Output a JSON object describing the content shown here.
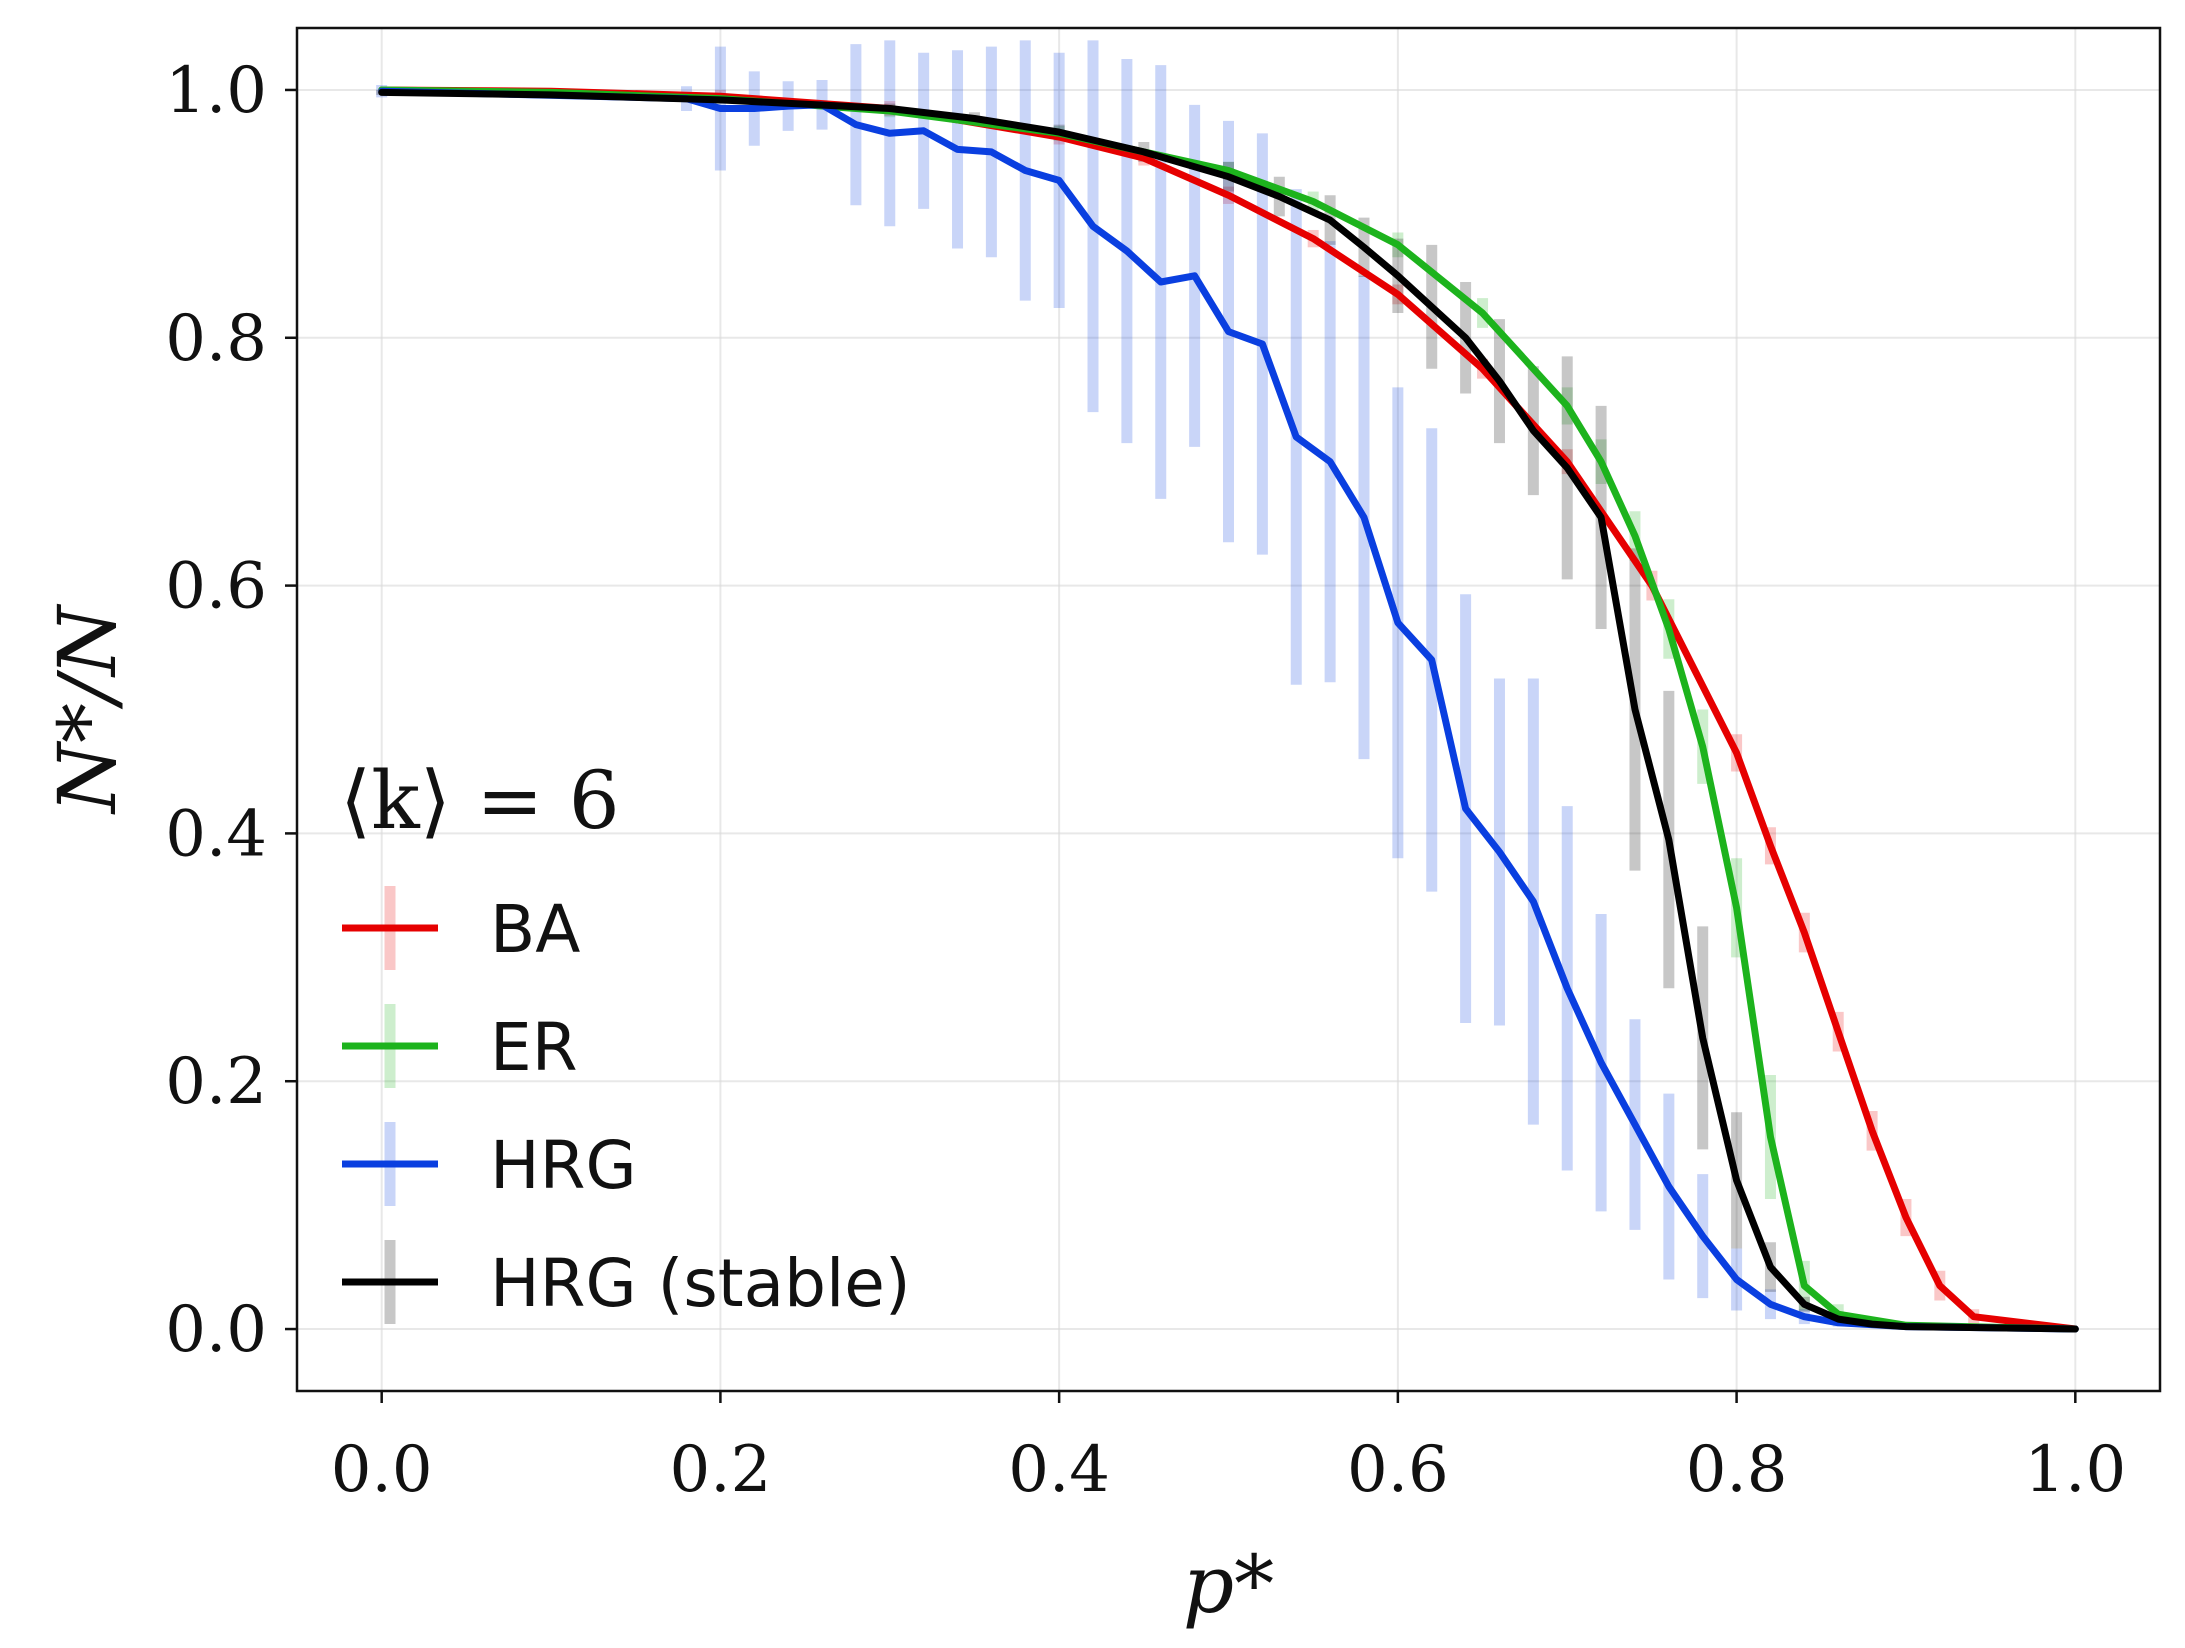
{
  "chart_data": {
    "type": "line",
    "xlabel": "p*",
    "ylabel": "N*/N",
    "xlim": [
      -0.05,
      1.05
    ],
    "ylim": [
      -0.05,
      1.05
    ],
    "xticks": [
      0.0,
      0.2,
      0.4,
      0.6,
      0.8,
      1.0
    ],
    "yticks": [
      0.0,
      0.2,
      0.4,
      0.6,
      0.8,
      1.0
    ],
    "xtick_labels": [
      "0.0",
      "0.2",
      "0.4",
      "0.6",
      "0.8",
      "1.0"
    ],
    "ytick_labels": [
      "0.0",
      "0.2",
      "0.4",
      "0.6",
      "0.8",
      "1.0"
    ],
    "grid": true,
    "legend": {
      "title": "⟨k⟩ = 6",
      "position": "lower-left"
    },
    "series": [
      {
        "name": "BA",
        "color": "#e60000",
        "x": [
          0.0,
          0.1,
          0.2,
          0.3,
          0.4,
          0.45,
          0.5,
          0.55,
          0.6,
          0.65,
          0.7,
          0.75,
          0.8,
          0.82,
          0.84,
          0.86,
          0.88,
          0.9,
          0.92,
          0.94,
          1.0
        ],
        "y": [
          1.0,
          0.999,
          0.995,
          0.985,
          0.962,
          0.945,
          0.915,
          0.88,
          0.835,
          0.775,
          0.7,
          0.6,
          0.465,
          0.39,
          0.32,
          0.24,
          0.16,
          0.09,
          0.035,
          0.01,
          0.0
        ],
        "err": [
          0.0,
          0.002,
          0.005,
          0.006,
          0.006,
          0.006,
          0.007,
          0.007,
          0.008,
          0.008,
          0.01,
          0.012,
          0.015,
          0.015,
          0.016,
          0.016,
          0.016,
          0.015,
          0.012,
          0.006,
          0.0
        ]
      },
      {
        "name": "ER",
        "color": "#1db31d",
        "x": [
          0.0,
          0.1,
          0.2,
          0.3,
          0.4,
          0.5,
          0.55,
          0.6,
          0.65,
          0.7,
          0.72,
          0.74,
          0.76,
          0.78,
          0.8,
          0.82,
          0.84,
          0.86,
          0.9,
          1.0
        ],
        "y": [
          1.0,
          0.998,
          0.993,
          0.983,
          0.965,
          0.935,
          0.91,
          0.875,
          0.82,
          0.745,
          0.7,
          0.64,
          0.565,
          0.47,
          0.34,
          0.155,
          0.035,
          0.012,
          0.003,
          0.0
        ],
        "err": [
          0.0,
          0.002,
          0.004,
          0.005,
          0.006,
          0.007,
          0.008,
          0.01,
          0.012,
          0.015,
          0.018,
          0.02,
          0.024,
          0.03,
          0.04,
          0.05,
          0.02,
          0.008,
          0.002,
          0.0
        ]
      },
      {
        "name": "HRG",
        "color": "#0a3fe0",
        "x": [
          0.0,
          0.18,
          0.2,
          0.22,
          0.24,
          0.26,
          0.28,
          0.3,
          0.32,
          0.34,
          0.36,
          0.38,
          0.4,
          0.42,
          0.44,
          0.46,
          0.48,
          0.5,
          0.52,
          0.54,
          0.56,
          0.58,
          0.6,
          0.62,
          0.64,
          0.66,
          0.68,
          0.7,
          0.72,
          0.74,
          0.76,
          0.78,
          0.8,
          0.82,
          0.84,
          0.86,
          0.9,
          1.0
        ],
        "y": [
          0.999,
          0.993,
          0.985,
          0.985,
          0.987,
          0.988,
          0.972,
          0.965,
          0.967,
          0.952,
          0.95,
          0.935,
          0.927,
          0.89,
          0.87,
          0.845,
          0.85,
          0.805,
          0.795,
          0.72,
          0.7,
          0.655,
          0.57,
          0.54,
          0.42,
          0.385,
          0.345,
          0.275,
          0.215,
          0.165,
          0.115,
          0.075,
          0.04,
          0.02,
          0.01,
          0.005,
          0.002,
          0.0
        ],
        "err": [
          0.005,
          0.01,
          0.05,
          0.03,
          0.02,
          0.02,
          0.065,
          0.075,
          0.063,
          0.08,
          0.085,
          0.105,
          0.103,
          0.15,
          0.155,
          0.175,
          0.138,
          0.17,
          0.17,
          0.2,
          0.178,
          0.195,
          0.19,
          0.187,
          0.173,
          0.14,
          0.18,
          0.147,
          0.12,
          0.085,
          0.075,
          0.05,
          0.025,
          0.012,
          0.006,
          0.003,
          0.001,
          0.0
        ]
      },
      {
        "name": "HRG (stable)",
        "color": "#000000",
        "x": [
          0.0,
          0.1,
          0.2,
          0.3,
          0.35,
          0.4,
          0.45,
          0.5,
          0.53,
          0.56,
          0.58,
          0.6,
          0.62,
          0.64,
          0.66,
          0.68,
          0.7,
          0.72,
          0.74,
          0.76,
          0.78,
          0.8,
          0.82,
          0.84,
          0.86,
          0.88,
          0.9,
          1.0
        ],
        "y": [
          0.998,
          0.996,
          0.992,
          0.985,
          0.977,
          0.966,
          0.95,
          0.93,
          0.914,
          0.895,
          0.873,
          0.85,
          0.825,
          0.8,
          0.765,
          0.725,
          0.695,
          0.655,
          0.5,
          0.395,
          0.235,
          0.12,
          0.05,
          0.02,
          0.008,
          0.004,
          0.002,
          0.0
        ],
        "err": [
          0.002,
          0.002,
          0.003,
          0.004,
          0.005,
          0.006,
          0.008,
          0.012,
          0.016,
          0.02,
          0.024,
          0.03,
          0.05,
          0.045,
          0.05,
          0.052,
          0.09,
          0.09,
          0.13,
          0.12,
          0.09,
          0.055,
          0.02,
          0.006,
          0.003,
          0.002,
          0.001,
          0.0
        ]
      }
    ]
  }
}
